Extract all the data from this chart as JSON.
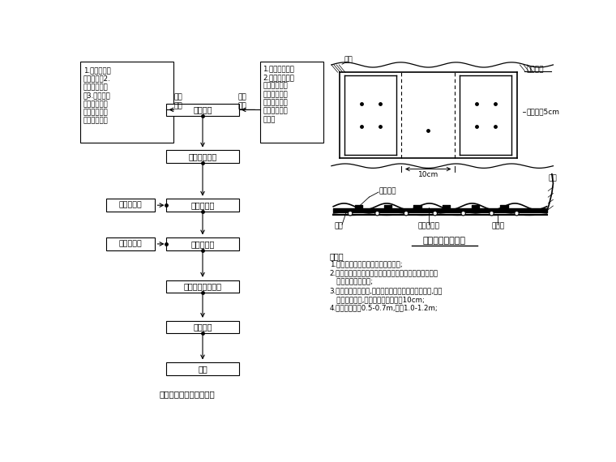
{
  "bg_color": "#ffffff",
  "title_bottom": "防水板铺设施工工艺框图",
  "right_title": "防水板铺设示意图",
  "note_title": "说明：",
  "note_lines": [
    "1.防水板在初期支护面上构足够连续;",
    "2.防水板铺设前，搭接数罗不得有锚杆头外露，对凹凸不",
    "   平部位应修整补喷;",
    "3.土工膜用射钉固定,防水板搭接在专用垫板固定木上,搭接",
    "   处用热熔焊接,明缝搭接宽度不小于10cm;",
    "4.射钉间距纵积0.5-0.7m,边墙1.0-1.2m;"
  ],
  "left_info_text": "1.防水板材料\n质量检查；2.\n面焊缝搭接验\n；3.防水板分\n块邻边缘二般\n截取，将块邻\n的对称叠起。",
  "right_info_text": "1.工作台就位；\n2.搭接锚杆头，\n外露钢丝，锚\n杆头周密料帽\n单位，切断、\n装丝头周砂浆\n抹平。",
  "label_dongwai": "洞外\n准备",
  "label_dongnei": "洞内\n准备",
  "flowchart_boxes": [
    "准备工作",
    "安装排水盲沟",
    "固定土工膜",
    "防水板置度",
    "防水板搭接缝焊接",
    "质量检查",
    "验收"
  ],
  "side_boxes": [
    "准备射钉枪",
    "手动热熔器"
  ],
  "label_sheding_top": "射钉",
  "label_suidao": "隧道纵向",
  "label_zhanjie": "粘接宽＜5cm",
  "label_10cm": "10cm",
  "label_rerongdianpian": "热熔垫片",
  "label_pentong": "喷砼",
  "label_sheding_bot": "射钉",
  "label_suliao": "塑料防水板",
  "label_tugong": "土工膜"
}
